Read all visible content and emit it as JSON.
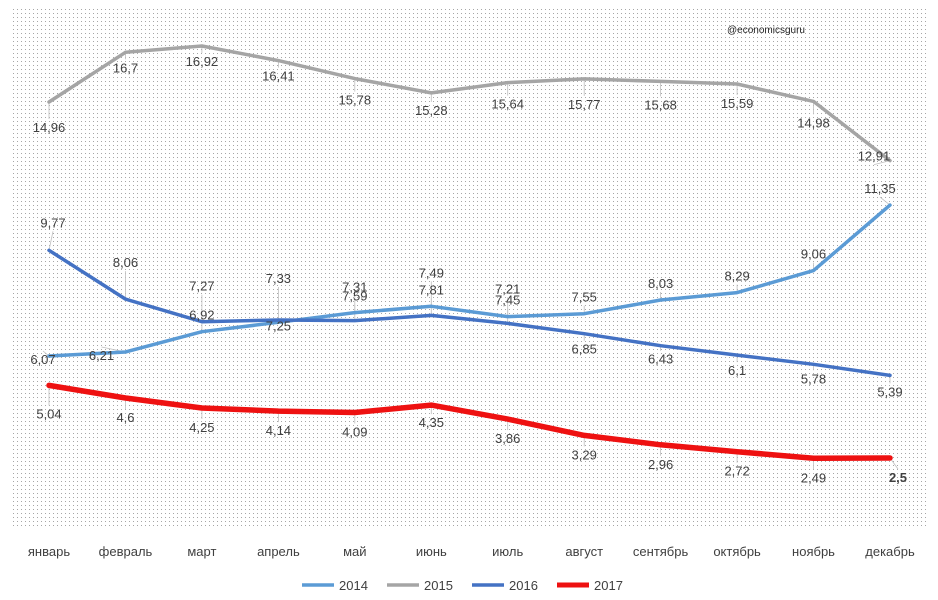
{
  "watermark": "@economicsguru",
  "chart_data": {
    "type": "line",
    "categories": [
      "январь",
      "февраль",
      "март",
      "апрель",
      "май",
      "июнь",
      "июль",
      "август",
      "сентябрь",
      "октябрь",
      "ноябрь",
      "декабрь"
    ],
    "ylim": [
      0,
      18
    ],
    "grid": false,
    "legend_position": "bottom",
    "series": [
      {
        "name": "2014",
        "color": "#5b9bd5",
        "values": [
          6.07,
          6.21,
          6.92,
          7.25,
          7.59,
          7.81,
          7.45,
          7.55,
          8.03,
          8.29,
          9.06,
          11.35
        ],
        "labels": [
          "6,07",
          "6,21",
          "6,92",
          "7,25",
          "7,59",
          "7,81",
          "7,45",
          "7,55",
          "8,03",
          "8,29",
          "9,06",
          "11,35"
        ]
      },
      {
        "name": "2015",
        "color": "#a5a5a5",
        "values": [
          14.96,
          16.7,
          16.92,
          16.41,
          15.78,
          15.28,
          15.64,
          15.77,
          15.68,
          15.59,
          14.98,
          12.91
        ],
        "labels": [
          "14,96",
          "16,7",
          "16,92",
          "16,41",
          "15,78",
          "15,28",
          "15,64",
          "15,77",
          "15,68",
          "15,59",
          "14,98",
          "12,91"
        ]
      },
      {
        "name": "2016",
        "color": "#4472c4",
        "values": [
          9.77,
          8.06,
          7.27,
          7.33,
          7.31,
          7.49,
          7.21,
          6.85,
          6.43,
          6.1,
          5.78,
          5.39
        ],
        "labels": [
          "9,77",
          "8,06",
          "7,27",
          "7,33",
          "7,31",
          "7,49",
          "7,21",
          "6,85",
          "6,43",
          "6,1",
          "5,78",
          "5,39"
        ]
      },
      {
        "name": "2017",
        "color": "#ee1111",
        "values": [
          5.04,
          4.6,
          4.25,
          4.14,
          4.09,
          4.35,
          3.86,
          3.29,
          2.96,
          2.72,
          2.49,
          2.5
        ],
        "labels": [
          "5,04",
          "4,6",
          "4,25",
          "4,14",
          "4,09",
          "4,35",
          "3,86",
          "3,29",
          "2,96",
          "2,72",
          "2,49",
          "2,5"
        ]
      }
    ]
  }
}
